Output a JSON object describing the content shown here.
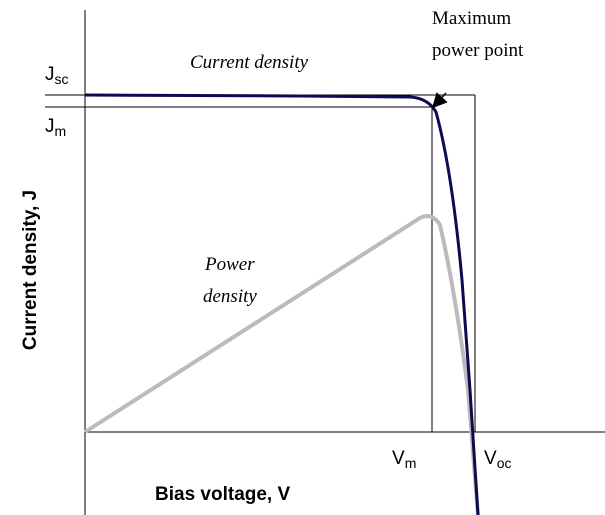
{
  "annotations": {
    "mpp_line1": "Maximum",
    "mpp_line2": "power point",
    "current": "Current density",
    "power_line1": "Power",
    "power_line2": "density"
  },
  "labels": {
    "jsc": {
      "main": "J",
      "sub": "sc"
    },
    "jm": {
      "main": "J",
      "sub": "m"
    },
    "vm": {
      "main": "V",
      "sub": "m"
    },
    "voc": {
      "main": "V",
      "sub": "oc"
    }
  },
  "axes": {
    "y_label": "Current density, J",
    "x_label": "Bias voltage, V"
  }
}
